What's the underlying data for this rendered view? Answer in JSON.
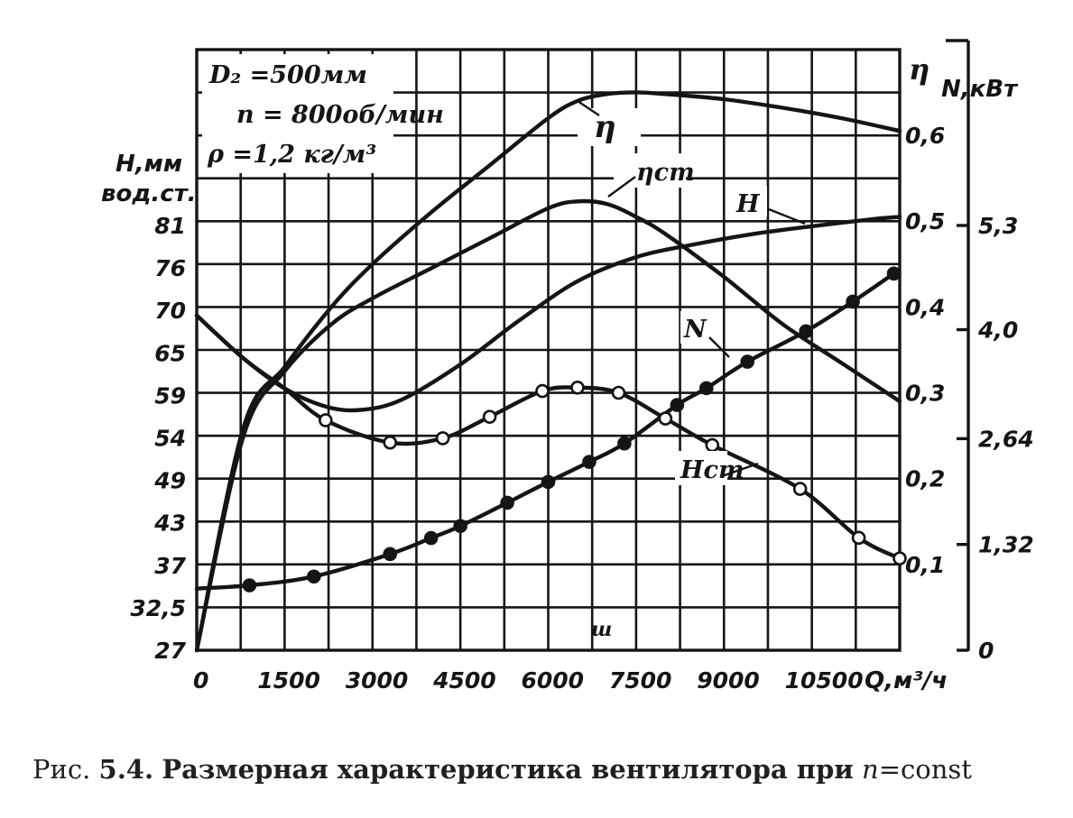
{
  "chart_data": {
    "type": "line",
    "x_ticks": [
      "0",
      "1500",
      "3000",
      "4500",
      "6000",
      "7500",
      "9000",
      "10500"
    ],
    "x_label": "Q,м³/ч",
    "xlim": [
      0,
      12000
    ],
    "left_axis": {
      "label_line1": "H,мм",
      "label_line2": "вод.ст.",
      "ticks": [
        "27",
        "32,5",
        "37",
        "43",
        "49",
        "54",
        "59",
        "65",
        "70",
        "76",
        "81"
      ],
      "ylim": [
        27,
        81
      ]
    },
    "eta_axis": {
      "label": "η",
      "ticks": [
        "0,1",
        "0,2",
        "0,3",
        "0,4",
        "0,5",
        "0,6"
      ],
      "ylim": [
        0,
        0.6
      ]
    },
    "power_axis": {
      "label": "N,кВт",
      "ticks": [
        "0",
        "1,32",
        "2,64",
        "4,0",
        "5,3"
      ],
      "ylim": [
        0,
        5.3
      ]
    },
    "params": {
      "line1": "D₂ =500мм",
      "line2": "n = 800об/мин",
      "line3": "ρ =1,2 кг/м³"
    },
    "series": [
      {
        "name": "η",
        "axis": "eta",
        "x": [
          0,
          800,
          1500,
          2300,
          3000,
          4000,
          5000,
          6000,
          6500,
          7000,
          7500,
          8000,
          9000,
          10000,
          11000,
          12000
        ],
        "y": [
          0,
          0.26,
          0.33,
          0.4,
          0.45,
          0.51,
          0.565,
          0.62,
          0.64,
          0.648,
          0.65,
          0.648,
          0.642,
          0.632,
          0.62,
          0.605
        ]
      },
      {
        "name": "ηст",
        "axis": "eta",
        "x": [
          0,
          800,
          1500,
          2300,
          3000,
          4000,
          5000,
          6000,
          6500,
          7000,
          7500,
          8000,
          9000,
          10000,
          11000,
          12000
        ],
        "y": [
          0,
          0.25,
          0.325,
          0.38,
          0.41,
          0.445,
          0.48,
          0.515,
          0.523,
          0.52,
          0.505,
          0.485,
          0.435,
          0.38,
          0.335,
          0.29
        ]
      },
      {
        "name": "H",
        "axis": "eta",
        "x": [
          0,
          800,
          1500,
          2200,
          2800,
          3500,
          4500,
          5500,
          6500,
          7500,
          8500,
          9500,
          10500,
          11500,
          12000
        ],
        "y": [
          0.39,
          0.34,
          0.305,
          0.284,
          0.28,
          0.292,
          0.333,
          0.384,
          0.43,
          0.458,
          0.473,
          0.485,
          0.494,
          0.502,
          0.505
        ]
      },
      {
        "name": "Hст",
        "axis": "eta",
        "x": [
          0,
          800,
          1500,
          2200,
          3300,
          4200,
          5000,
          5900,
          6500,
          7200,
          8000,
          8800,
          10300,
          11300,
          12000
        ],
        "y": [
          0.39,
          0.34,
          0.305,
          0.268,
          0.242,
          0.247,
          0.272,
          0.302,
          0.306,
          0.3,
          0.27,
          0.239,
          0.188,
          0.131,
          0.107
        ],
        "markers": "open"
      },
      {
        "name": "N",
        "axis": "power",
        "x": [
          0,
          900,
          2000,
          3300,
          4000,
          4500,
          5300,
          6000,
          6700,
          7300,
          8200,
          8700,
          9400,
          10400,
          11200,
          11900
        ],
        "y": [
          0.77,
          0.81,
          0.92,
          1.2,
          1.4,
          1.55,
          1.84,
          2.1,
          2.35,
          2.58,
          3.06,
          3.27,
          3.6,
          3.98,
          4.35,
          4.7
        ],
        "markers": "filled"
      }
    ],
    "grid": true,
    "legend": "none",
    "artifact_glyph": "ш"
  },
  "caption": {
    "prefix": "Рис.",
    "number": "5.4.",
    "text": "Размерная характеристика вентилятора при",
    "var": "n",
    "suffix": "=const"
  }
}
